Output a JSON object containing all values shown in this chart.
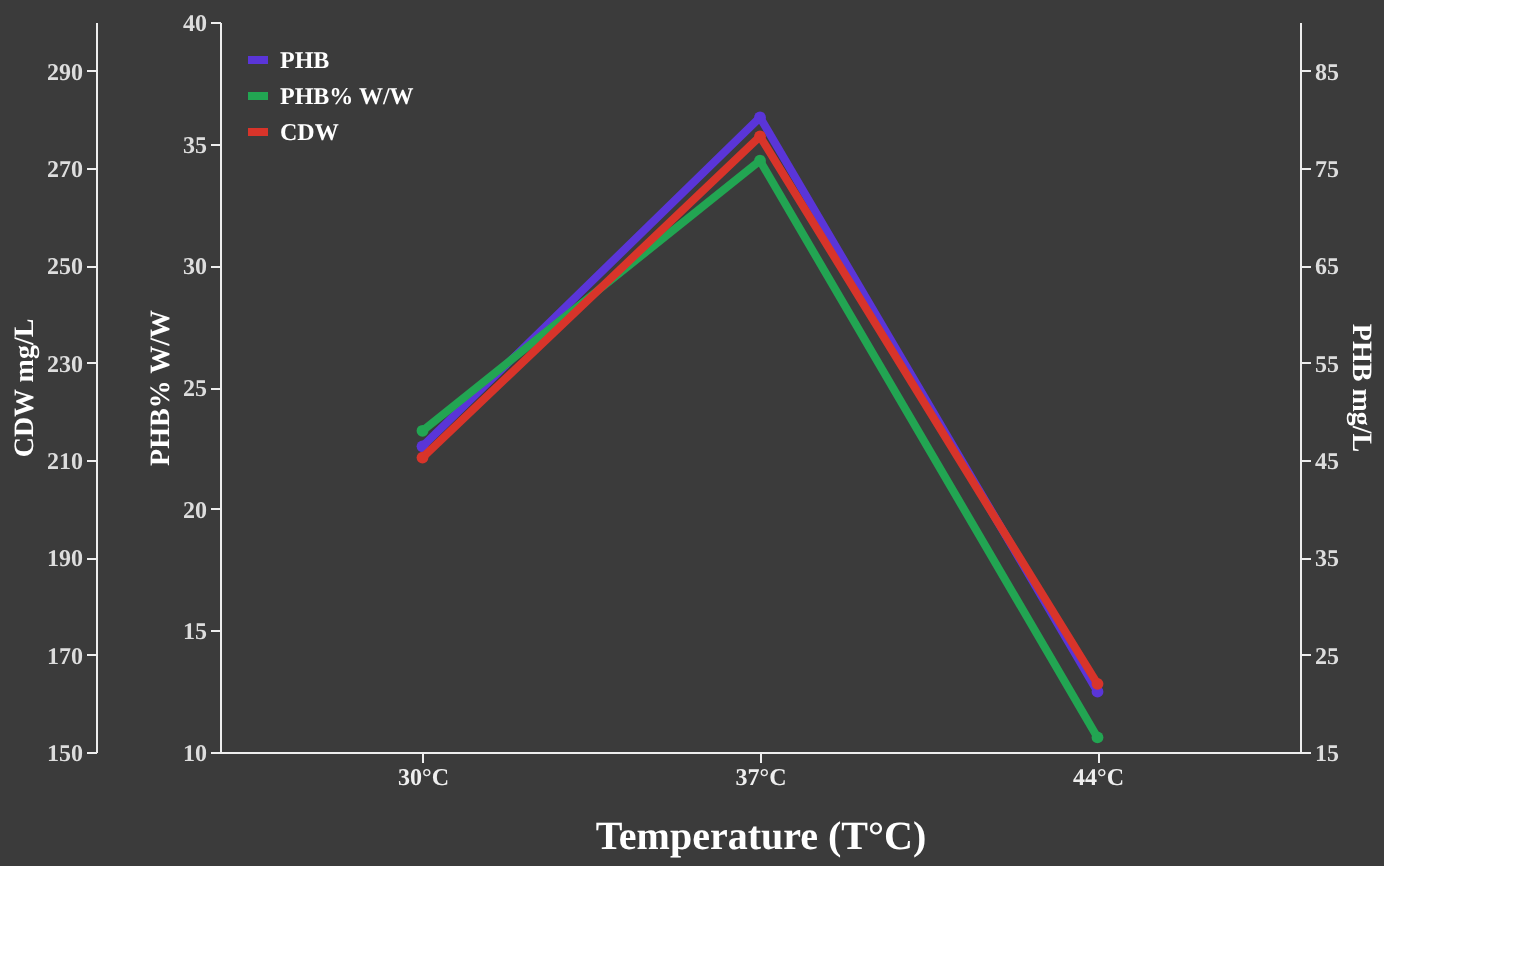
{
  "chart_data": {
    "type": "line",
    "xlabel": "Temperature (T°C)",
    "ylabel": "PHB% W/W",
    "y2label": "PHB mg/L",
    "y3label": "CDW mg/L",
    "categories": [
      "30°C",
      "37°C",
      "44°C"
    ],
    "series": [
      {
        "name": "PHB",
        "color": "#5a35d8",
        "values": [
          46.4,
          80.2,
          21.2
        ],
        "axis": "y2"
      },
      {
        "name": "PHB% W/W",
        "color": "#22a552",
        "values": [
          23.2,
          34.3,
          10.6
        ],
        "axis": "y"
      },
      {
        "name": "CDW",
        "color": "#d8342a",
        "values": [
          210.5,
          276.5,
          164
        ],
        "axis": "y3"
      }
    ],
    "ylim": [
      10,
      40
    ],
    "yticks": [
      10,
      15,
      20,
      25,
      30,
      35,
      40
    ],
    "y2lim": [
      15,
      90
    ],
    "y2ticks": [
      15,
      25,
      35,
      45,
      55,
      65,
      75,
      85
    ],
    "y3lim": [
      150,
      300
    ],
    "y3ticks": [
      150,
      170,
      190,
      210,
      230,
      250,
      270,
      290
    ],
    "legend": "top left",
    "marker": "circle",
    "line_style": "solid",
    "grid": false
  }
}
